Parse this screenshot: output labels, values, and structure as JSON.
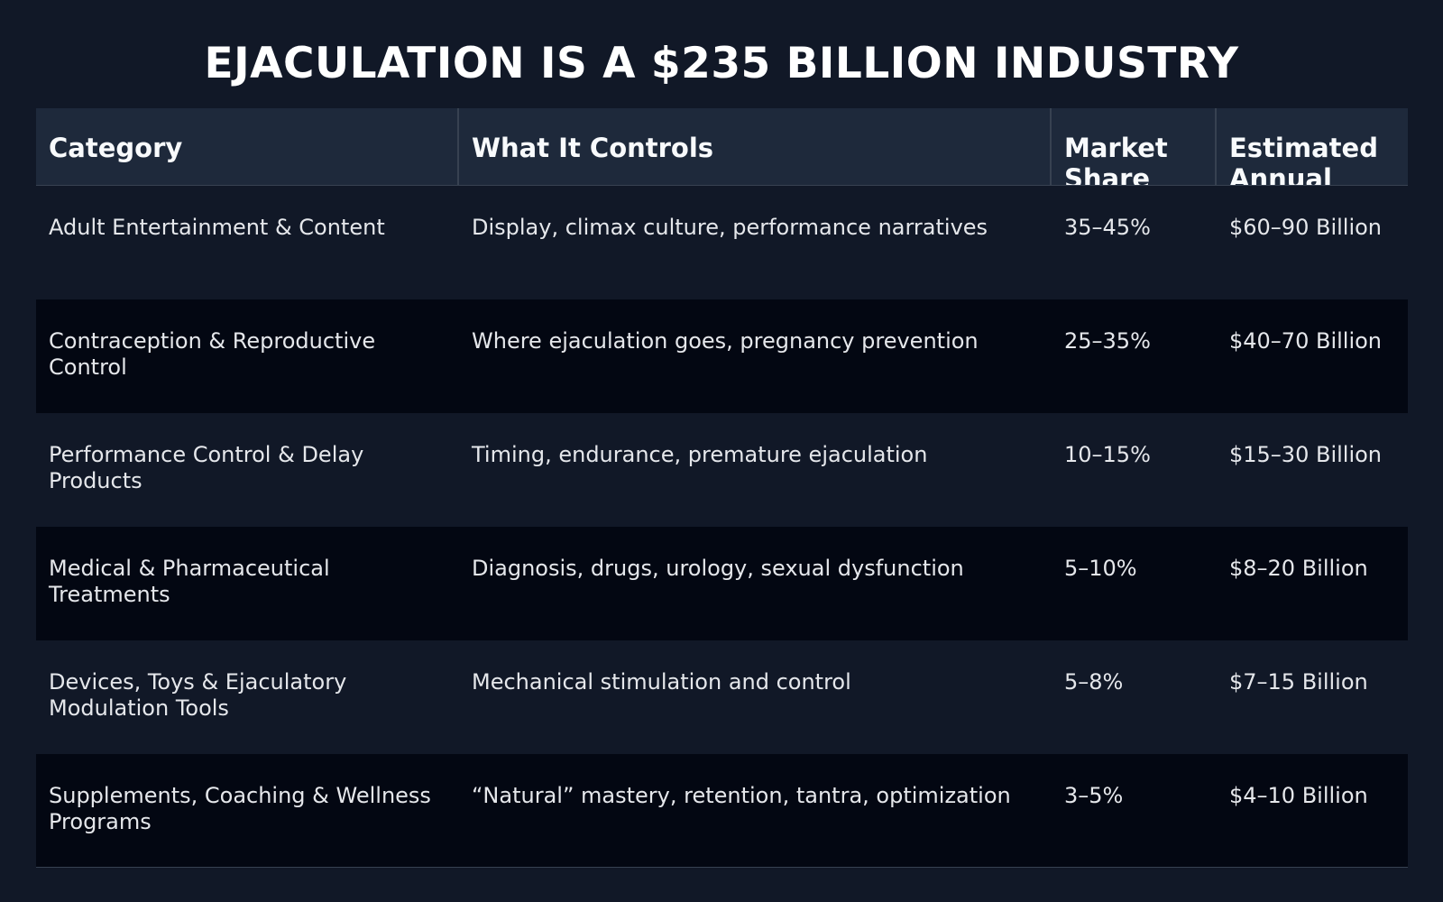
{
  "title": "EJACULATION IS A $235 BILLION INDUSTRY",
  "columns": [
    "Category",
    "What It Controls",
    "Market Share",
    "Estimated Annual"
  ],
  "rows": [
    {
      "category": "Adult Entertainment & Content",
      "controls": "Display, climax culture, performance narratives",
      "share": "35–45%",
      "annual": "$60–90 Billion"
    },
    {
      "category": "Contraception & Reproductive Control",
      "controls": "Where ejaculation goes, pregnancy prevention",
      "share": "25–35%",
      "annual": "$40–70 Billion"
    },
    {
      "category": "Performance Control & Delay Products",
      "controls": "Timing, endurance, premature ejaculation",
      "share": "10–15%",
      "annual": "$15–30 Billion"
    },
    {
      "category": "Medical & Pharmaceutical Treatments",
      "controls": "Diagnosis, drugs, urology, sexual dysfunction",
      "share": "5–10%",
      "annual": "$8–20 Billion"
    },
    {
      "category": "Devices, Toys & Ejaculatory Modulation Tools",
      "controls": "Mechanical stimulation and control",
      "share": "5–8%",
      "annual": "$7–15 Billion"
    },
    {
      "category": "Supplements, Coaching & Wellness Programs",
      "controls": "“Natural” mastery, retention, tantra, optimization",
      "share": "3–5%",
      "annual": "$4–10 Billion"
    }
  ]
}
